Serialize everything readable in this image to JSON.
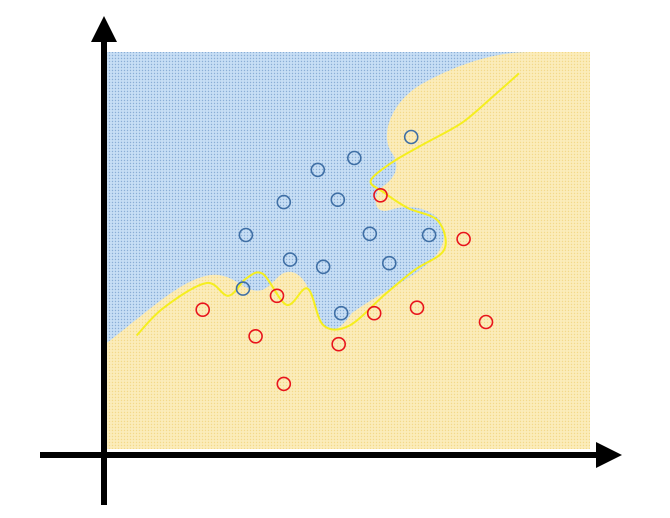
{
  "chart_data": {
    "type": "scatter",
    "title": "",
    "xlabel": "",
    "ylabel": "",
    "xlim": [
      0,
      100
    ],
    "ylim": [
      0,
      100
    ],
    "grid": false,
    "series": [
      {
        "class": "blue",
        "points": [
          {
            "x": 63.2,
            "y": 78.6
          },
          {
            "x": 44.0,
            "y": 70.3
          },
          {
            "x": 51.5,
            "y": 73.3
          },
          {
            "x": 37.0,
            "y": 62.2
          },
          {
            "x": 48.1,
            "y": 62.8
          },
          {
            "x": 29.2,
            "y": 53.9
          },
          {
            "x": 54.7,
            "y": 54.2
          },
          {
            "x": 66.9,
            "y": 53.9
          },
          {
            "x": 38.3,
            "y": 47.7
          },
          {
            "x": 45.1,
            "y": 45.9
          },
          {
            "x": 58.7,
            "y": 46.8
          },
          {
            "x": 28.6,
            "y": 40.4
          },
          {
            "x": 48.8,
            "y": 34.2
          }
        ]
      },
      {
        "class": "red",
        "points": [
          {
            "x": 56.9,
            "y": 63.9
          },
          {
            "x": 74.0,
            "y": 52.9
          },
          {
            "x": 35.6,
            "y": 38.6
          },
          {
            "x": 20.3,
            "y": 35.1
          },
          {
            "x": 55.6,
            "y": 34.2
          },
          {
            "x": 64.4,
            "y": 35.6
          },
          {
            "x": 78.6,
            "y": 32.0
          },
          {
            "x": 31.2,
            "y": 28.4
          },
          {
            "x": 48.3,
            "y": 26.4
          },
          {
            "x": 37.0,
            "y": 16.4
          }
        ]
      }
    ],
    "decision_boundary": [
      {
        "x": 6.7,
        "y": 28.6
      },
      {
        "x": 12.3,
        "y": 35.6
      },
      {
        "x": 21.0,
        "y": 41.8
      },
      {
        "x": 25.6,
        "y": 38.6
      },
      {
        "x": 29.2,
        "y": 42.9
      },
      {
        "x": 32.7,
        "y": 44.1
      },
      {
        "x": 37.6,
        "y": 36.3
      },
      {
        "x": 41.9,
        "y": 40.4
      },
      {
        "x": 45.1,
        "y": 31.2
      },
      {
        "x": 50.4,
        "y": 31.0
      },
      {
        "x": 57.5,
        "y": 38.6
      },
      {
        "x": 63.8,
        "y": 45.0
      },
      {
        "x": 70.0,
        "y": 50.2
      },
      {
        "x": 68.7,
        "y": 57.5
      },
      {
        "x": 62.5,
        "y": 60.7
      },
      {
        "x": 57.5,
        "y": 64.7
      },
      {
        "x": 54.9,
        "y": 67.6
      },
      {
        "x": 59.4,
        "y": 72.3
      },
      {
        "x": 66.1,
        "y": 77.0
      },
      {
        "x": 73.8,
        "y": 82.3
      },
      {
        "x": 80.2,
        "y": 89.0
      },
      {
        "x": 85.4,
        "y": 94.6
      }
    ],
    "colors": {
      "blue_region": "#c7def5",
      "blue_dots": "#8aaed6",
      "yellow_region": "#fbecba",
      "yellow_dots": "#f3d98a",
      "blue_marker": "#3f6fa5",
      "red_marker": "#e8141c",
      "boundary": "#f5ee1f",
      "axes": "#000000"
    }
  }
}
